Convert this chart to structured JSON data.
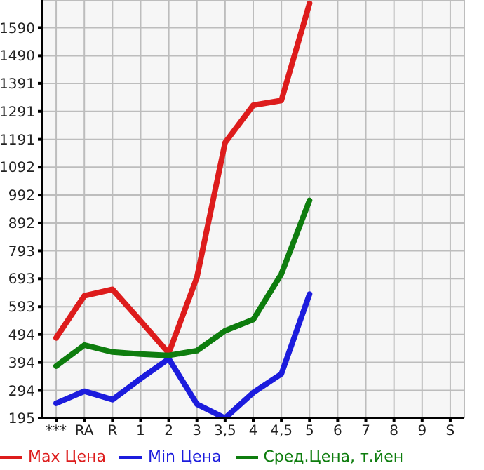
{
  "chart_data": {
    "type": "line",
    "categories": [
      "***",
      "RA",
      "R",
      "1",
      "2",
      "3",
      "3,5",
      "4",
      "4,5",
      "5",
      "6",
      "7",
      "8",
      "9",
      "S"
    ],
    "series": [
      {
        "name": "Max Цена",
        "color": "#dd1c1c",
        "values": [
          482,
          632,
          655,
          542,
          427,
          698,
          1179,
          1313,
          1330,
          1677,
          null,
          null,
          null,
          null,
          null
        ]
      },
      {
        "name": "Min Цена",
        "color": "#1c1cdd",
        "values": [
          248,
          291,
          261,
          336,
          407,
          245,
          195,
          286,
          353,
          638,
          null,
          null,
          null,
          null,
          null
        ]
      },
      {
        "name": "Сред.Цена, т.йен",
        "color": "#0e7d0e",
        "values": [
          381,
          456,
          431,
          424,
          419,
          436,
          507,
          547,
          710,
          973,
          null,
          null,
          null,
          null,
          null
        ]
      }
    ],
    "ylim": [
      195,
      1689
    ],
    "yticks": [
      195,
      294,
      394,
      494,
      593,
      693,
      793,
      892,
      992,
      1092,
      1191,
      1291,
      1391,
      1490,
      1590
    ],
    "grid": true,
    "legend": "bottom",
    "marker": "none",
    "line_style": "solid"
  }
}
